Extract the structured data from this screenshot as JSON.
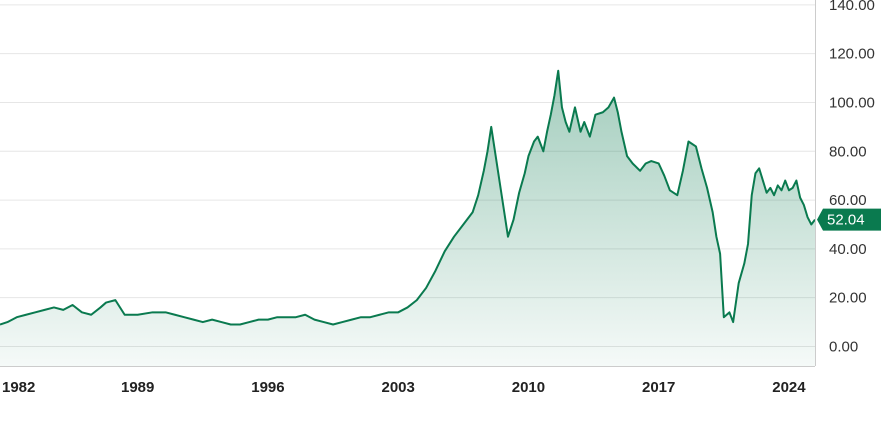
{
  "chart_data": {
    "type": "area",
    "title": "",
    "xlabel": "",
    "ylabel": "",
    "xlim": [
      1981.6,
      2025.4
    ],
    "ylim": [
      -8,
      142
    ],
    "grid": true,
    "x_ticks": [
      "1982",
      "1989",
      "1996",
      "2003",
      "2010",
      "2017",
      "2024"
    ],
    "x_tick_values": [
      1982,
      1989,
      1996,
      2003,
      2010,
      2017,
      2024
    ],
    "y_ticks": [
      "0.00",
      "20.00",
      "40.00",
      "60.00",
      "80.00",
      "100.00",
      "120.00",
      "140.00"
    ],
    "y_tick_values": [
      0,
      20,
      40,
      60,
      80,
      100,
      120,
      140
    ],
    "last_value_label": "52.04",
    "colors": {
      "line": "#0a7a4f",
      "fill": "#0a7a4f",
      "badge": "#0a7a4f",
      "grid": "#e6e6e6"
    },
    "series": [
      {
        "x": [
          1981.6,
          1982.0,
          1982.5,
          1983.0,
          1983.5,
          1984.0,
          1984.5,
          1985.0,
          1985.5,
          1986.0,
          1986.5,
          1987.0,
          1987.3,
          1987.8,
          1988.3,
          1989.0,
          1989.8,
          1990.5,
          1991.0,
          1991.5,
          1992.0,
          1992.5,
          1993.0,
          1993.5,
          1994.0,
          1994.5,
          1995.0,
          1995.5,
          1996.0,
          1996.5,
          1997.0,
          1997.5,
          1998.0,
          1998.5,
          1999.0,
          1999.5,
          2000.0,
          2000.5,
          2001.0,
          2001.5,
          2002.0,
          2002.5,
          2003.0,
          2003.5,
          2004.0,
          2004.5,
          2005.0,
          2005.5,
          2006.0,
          2006.5,
          2007.0,
          2007.3,
          2007.6,
          2007.8,
          2008.0,
          2008.3,
          2008.5,
          2008.7,
          2008.9,
          2009.2,
          2009.5,
          2009.8,
          2010.0,
          2010.3,
          2010.5,
          2010.8,
          2011.0,
          2011.2,
          2011.4,
          2011.6,
          2011.8,
          2012.0,
          2012.2,
          2012.5,
          2012.8,
          2013.0,
          2013.3,
          2013.6,
          2014.0,
          2014.3,
          2014.6,
          2014.8,
          2015.0,
          2015.3,
          2015.6,
          2016.0,
          2016.3,
          2016.6,
          2017.0,
          2017.3,
          2017.6,
          2018.0,
          2018.3,
          2018.6,
          2019.0,
          2019.3,
          2019.6,
          2019.9,
          2020.1,
          2020.3,
          2020.5,
          2020.8,
          2021.0,
          2021.3,
          2021.6,
          2021.8,
          2022.0,
          2022.2,
          2022.4,
          2022.6,
          2022.8,
          2023.0,
          2023.2,
          2023.4,
          2023.6,
          2023.8,
          2024.0,
          2024.2,
          2024.4,
          2024.6,
          2024.8,
          2025.0,
          2025.2,
          2025.4
        ],
        "y": [
          9,
          10,
          12,
          13,
          14,
          15,
          16,
          15,
          17,
          14,
          13,
          16,
          18,
          19,
          13,
          13,
          14,
          14,
          13,
          12,
          11,
          10,
          11,
          10,
          9,
          9,
          10,
          11,
          11,
          12,
          12,
          12,
          13,
          11,
          10,
          9,
          10,
          11,
          12,
          12,
          13,
          14,
          14,
          16,
          19,
          24,
          31,
          39,
          45,
          50,
          55,
          62,
          72,
          80,
          90,
          75,
          65,
          55,
          45,
          52,
          63,
          71,
          78,
          84,
          86,
          80,
          88,
          95,
          103,
          113,
          98,
          92,
          88,
          98,
          88,
          92,
          86,
          95,
          96,
          98,
          102,
          96,
          88,
          78,
          75,
          72,
          75,
          76,
          75,
          70,
          64,
          62,
          72,
          84,
          82,
          73,
          65,
          55,
          45,
          38,
          12,
          14,
          10,
          26,
          34,
          42,
          62,
          71,
          73,
          68,
          63,
          65,
          62,
          66,
          64,
          68,
          64,
          65,
          68,
          61,
          58,
          53,
          50,
          52
        ]
      }
    ]
  }
}
